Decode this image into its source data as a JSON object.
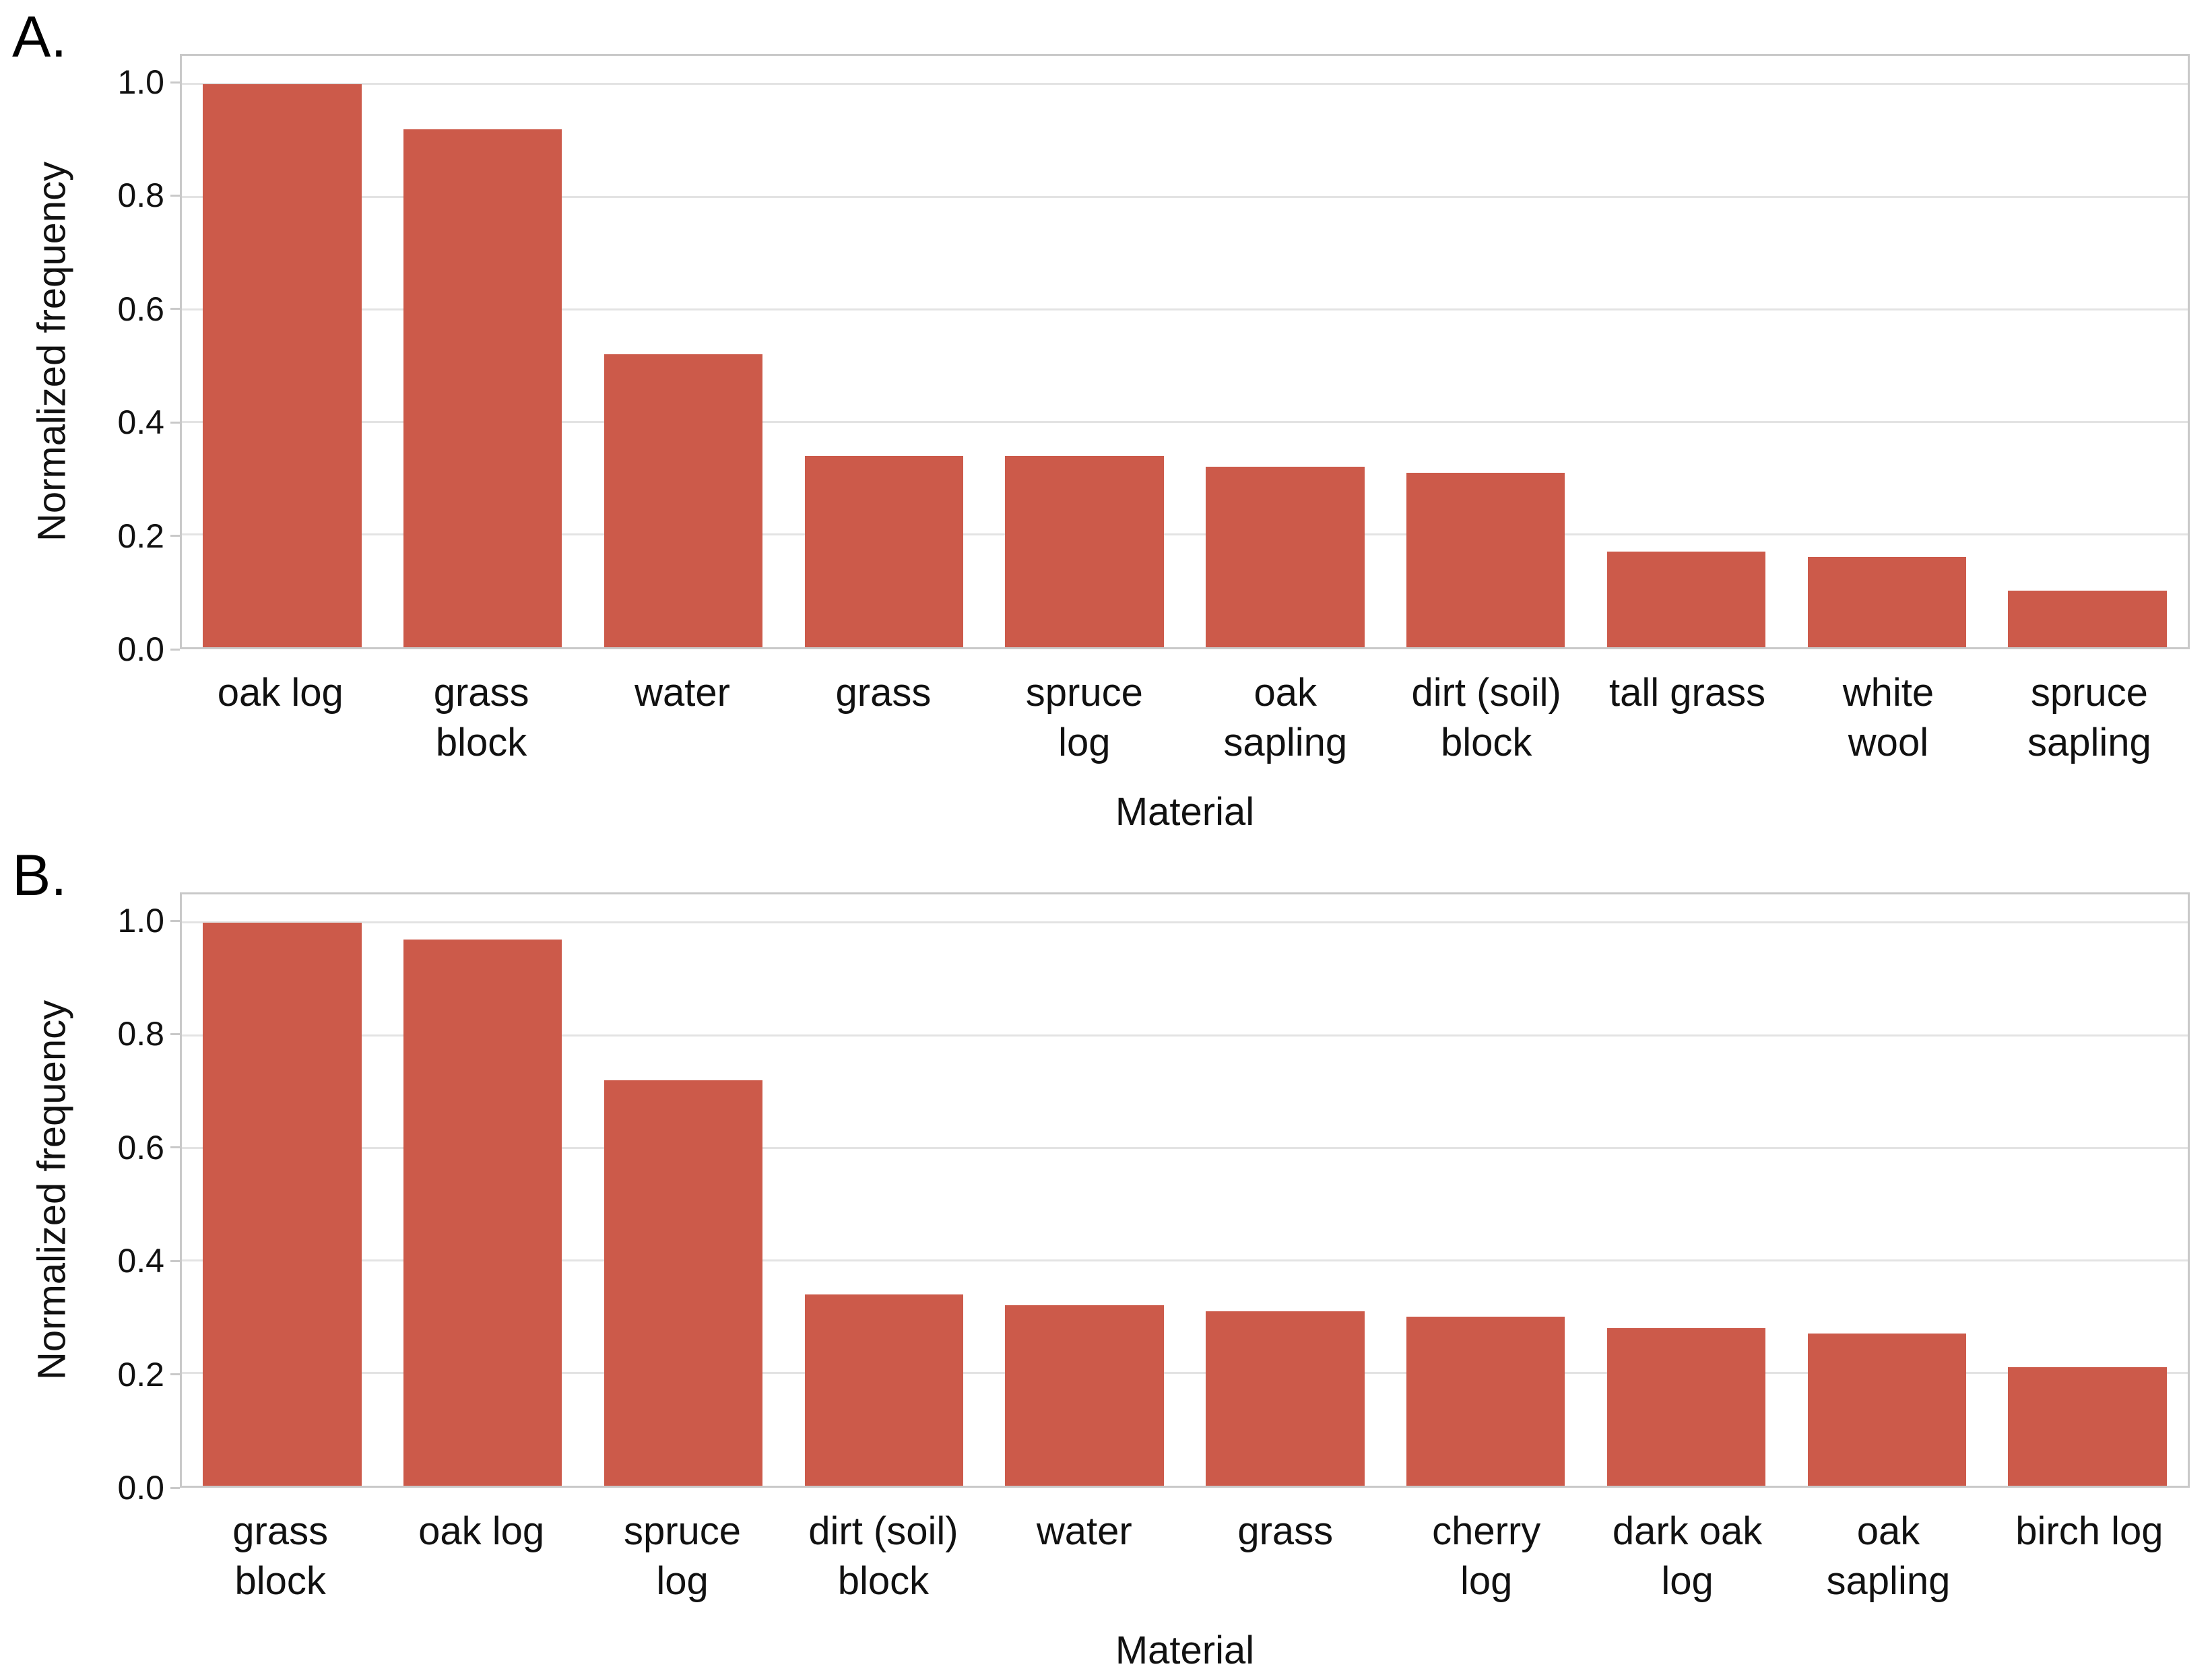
{
  "figure": {
    "background": "#FFFFFF"
  },
  "style": {
    "bar_color": "#CC5A4A",
    "grid_color": "#E3E3E3",
    "spine_color": "#C9C9C9",
    "text_color": "#111111"
  },
  "chart_data": [
    {
      "type": "bar",
      "panel_label": "A.",
      "title": "",
      "xlabel": "Material",
      "ylabel": "Normalized frequency",
      "ylim": [
        0,
        1.05
      ],
      "grid": true,
      "ytick_labels": [
        "0.0",
        "0.2",
        "0.4",
        "0.6",
        "0.8",
        "1.0"
      ],
      "categories": [
        "oak log",
        "grass block",
        "water",
        "grass",
        "spruce log",
        "oak sapling",
        "dirt (soil) block",
        "tall grass",
        "white wool",
        "spruce sapling"
      ],
      "category_lines": [
        [
          "oak log"
        ],
        [
          "grass",
          "block"
        ],
        [
          "water"
        ],
        [
          "grass"
        ],
        [
          "spruce",
          "log"
        ],
        [
          "oak",
          "sapling"
        ],
        [
          "dirt (soil)",
          "block"
        ],
        [
          "tall grass"
        ],
        [
          "white",
          "wool"
        ],
        [
          "spruce",
          "sapling"
        ]
      ],
      "values": [
        1.0,
        0.92,
        0.52,
        0.34,
        0.34,
        0.32,
        0.31,
        0.17,
        0.16,
        0.1
      ]
    },
    {
      "type": "bar",
      "panel_label": "B.",
      "title": "",
      "xlabel": "Material",
      "ylabel": "Normalized frequency",
      "ylim": [
        0,
        1.05
      ],
      "grid": true,
      "ytick_labels": [
        "0.0",
        "0.2",
        "0.4",
        "0.6",
        "0.8",
        "1.0"
      ],
      "categories": [
        "grass block",
        "oak log",
        "spruce log",
        "dirt (soil) block",
        "water",
        "grass",
        "cherry log",
        "dark oak log",
        "oak sapling",
        "birch log"
      ],
      "category_lines": [
        [
          "grass",
          "block"
        ],
        [
          "oak log"
        ],
        [
          "spruce",
          "log"
        ],
        [
          "dirt (soil)",
          "block"
        ],
        [
          "water"
        ],
        [
          "grass"
        ],
        [
          "cherry",
          "log"
        ],
        [
          "dark oak",
          "log"
        ],
        [
          "oak",
          "sapling"
        ],
        [
          "birch log"
        ]
      ],
      "values": [
        1.0,
        0.97,
        0.72,
        0.34,
        0.32,
        0.31,
        0.3,
        0.28,
        0.27,
        0.21
      ]
    }
  ]
}
